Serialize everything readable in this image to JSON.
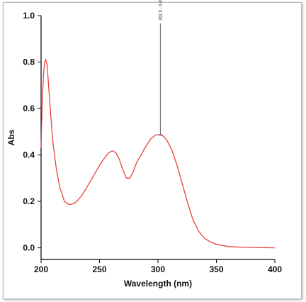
{
  "chart_data": {
    "type": "line",
    "title": "",
    "xlabel": "Wavelength (nm)",
    "ylabel": "Abs",
    "xlim": [
      200,
      400
    ],
    "ylim": [
      -0.05,
      1.0
    ],
    "xticks": [
      200,
      250,
      300,
      350,
      400
    ],
    "yticks": [
      0.0,
      0.2,
      0.4,
      0.6,
      0.8,
      1.0
    ],
    "xtick_labels": [
      "200",
      "250",
      "300",
      "350",
      "400"
    ],
    "ytick_labels": [
      "0.0",
      "0.2",
      "0.4",
      "0.6",
      "0.8",
      "1.0"
    ],
    "grid": false,
    "series": [
      {
        "color": "#e8423b",
        "x": [
          200,
          201,
          202,
          203,
          204,
          205,
          206,
          208,
          210,
          213,
          216,
          220,
          224,
          227,
          230,
          234,
          238,
          242,
          246,
          250,
          254,
          258,
          261,
          264,
          267,
          270,
          273,
          276,
          279,
          282,
          286,
          290,
          294,
          298,
          302,
          305,
          308,
          312,
          316,
          320,
          325,
          330,
          335,
          340,
          345,
          350,
          360,
          370,
          380,
          390,
          400
        ],
        "y": [
          0.43,
          0.62,
          0.74,
          0.8,
          0.81,
          0.79,
          0.73,
          0.59,
          0.46,
          0.34,
          0.26,
          0.2,
          0.186,
          0.189,
          0.198,
          0.22,
          0.25,
          0.285,
          0.32,
          0.355,
          0.385,
          0.41,
          0.418,
          0.41,
          0.38,
          0.335,
          0.3,
          0.3,
          0.33,
          0.37,
          0.405,
          0.44,
          0.47,
          0.486,
          0.487,
          0.48,
          0.46,
          0.42,
          0.36,
          0.29,
          0.2,
          0.12,
          0.07,
          0.04,
          0.025,
          0.015,
          0.006,
          0.003,
          0.002,
          0.001,
          0.0
        ]
      }
    ],
    "annotations": [
      {
        "text": "302.0 , 0.487",
        "x": 302,
        "y": 0.487,
        "label_top_y": 0.96
      }
    ]
  }
}
